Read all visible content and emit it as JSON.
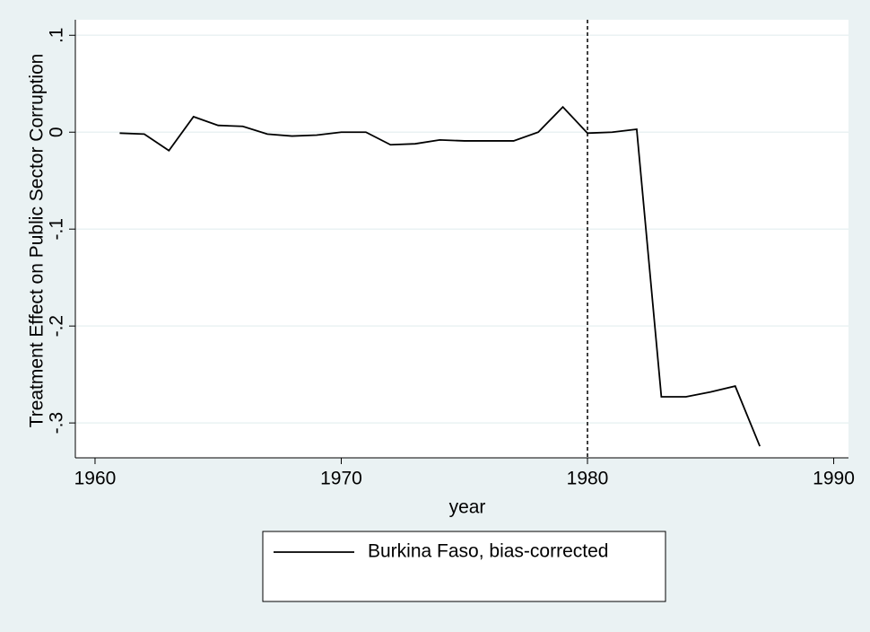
{
  "chart_data": {
    "type": "line",
    "xlabel": "year",
    "ylabel": "Treatment Effect on Public Sector Corruption",
    "x": [
      1961,
      1962,
      1963,
      1964,
      1965,
      1966,
      1967,
      1968,
      1969,
      1970,
      1971,
      1972,
      1973,
      1974,
      1975,
      1976,
      1977,
      1978,
      1979,
      1980,
      1981,
      1982,
      1983,
      1984,
      1985,
      1986,
      1987
    ],
    "series": [
      {
        "name": "Burkina Faso, bias-corrected",
        "color": "#000000",
        "values": [
          -0.001,
          -0.002,
          -0.019,
          0.016,
          0.007,
          0.006,
          -0.002,
          -0.004,
          -0.003,
          0,
          0,
          -0.013,
          -0.012,
          -0.008,
          -0.009,
          -0.009,
          -0.009,
          0,
          0.026,
          -0.001,
          0,
          0.003,
          -0.273,
          -0.273,
          -0.268,
          -0.262,
          -0.324
        ]
      }
    ],
    "xline": 1980,
    "xlim": [
      1959.2,
      1990.6
    ],
    "ylim": [
      -0.336,
      0.116
    ],
    "xticks": [
      1960,
      1970,
      1980,
      1990
    ],
    "yticks": [
      {
        "value": -0.3,
        "label": "-.3"
      },
      {
        "value": -0.2,
        "label": "-.2"
      },
      {
        "value": -0.1,
        "label": "-.1"
      },
      0,
      {
        "value": 0.1,
        "label": ".1"
      }
    ],
    "grid": true
  }
}
